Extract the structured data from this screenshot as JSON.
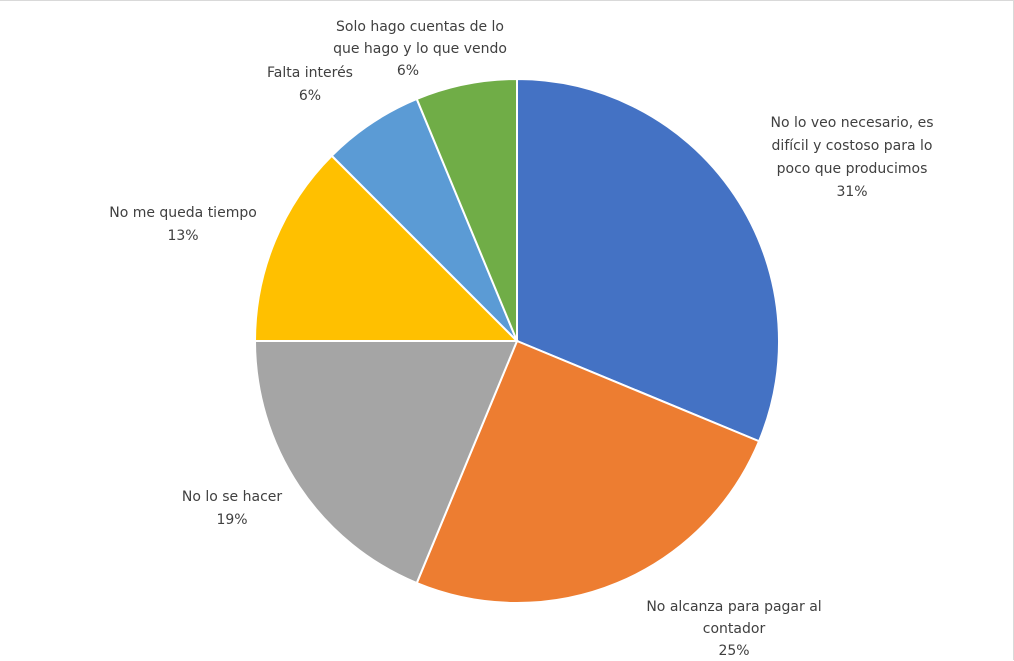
{
  "chart_data": {
    "type": "pie",
    "title": "",
    "start_angle_deg": 0,
    "direction": "clockwise",
    "legend": "none",
    "slices": [
      {
        "label_lines": [
          "No lo veo necesario, es",
          "difícil y costoso para lo",
          "poco que producimos"
        ],
        "percent_label": "31%",
        "value": 31.25,
        "color": "#4472C4"
      },
      {
        "label_lines": [
          "No alcanza para pagar al",
          "contador"
        ],
        "percent_label": "25%",
        "value": 25,
        "color": "#ED7D31"
      },
      {
        "label_lines": [
          "No lo se hacer"
        ],
        "percent_label": "19%",
        "value": 18.75,
        "color": "#A5A5A5"
      },
      {
        "label_lines": [
          "No me queda tiempo"
        ],
        "percent_label": "13%",
        "value": 12.5,
        "color": "#FFC000"
      },
      {
        "label_lines": [
          "Falta interés"
        ],
        "percent_label": "6%",
        "value": 6.25,
        "color": "#5B9BD5"
      },
      {
        "label_lines": [
          "Solo hago cuentas de lo",
          "que hago y lo que vendo"
        ],
        "percent_label": "6%",
        "value": 6.25,
        "color": "#70AD47"
      }
    ]
  }
}
